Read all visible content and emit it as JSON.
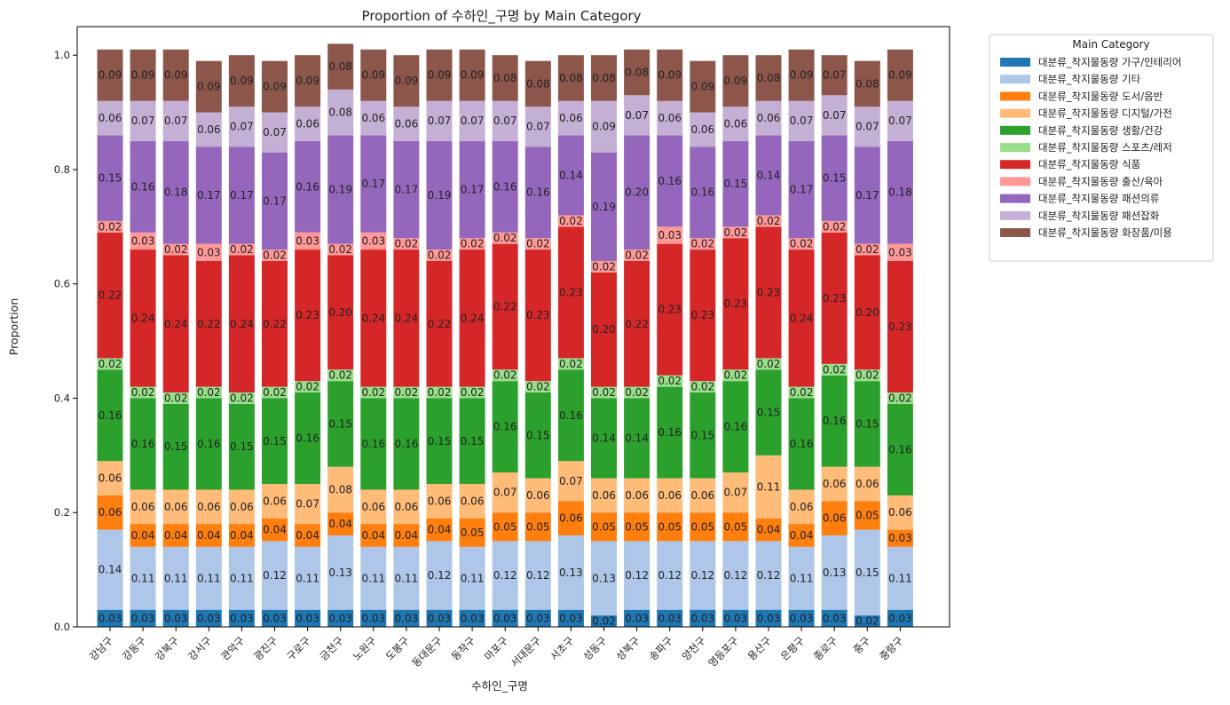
{
  "chart_data": {
    "type": "bar",
    "stacked": true,
    "title": "Proportion of 수하인_구명 by Main Category",
    "xlabel": "수하인_구명",
    "ylabel": "Proportion",
    "ylim": [
      0,
      1.05
    ],
    "yticks": [
      "0.0",
      "0.2",
      "0.4",
      "0.6",
      "0.8",
      "1.0"
    ],
    "grid": false,
    "legend_title": "Main Category",
    "legend_position": "outside-top-right",
    "categories": [
      "강남구",
      "강동구",
      "강북구",
      "강서구",
      "관악구",
      "광진구",
      "구로구",
      "금천구",
      "노원구",
      "도봉구",
      "동대문구",
      "동작구",
      "마포구",
      "서대문구",
      "서초구",
      "성동구",
      "성북구",
      "송파구",
      "양천구",
      "영등포구",
      "용산구",
      "은평구",
      "종로구",
      "중구",
      "중랑구"
    ],
    "series": [
      {
        "name": "대분류_착지물동량 가구/인테리어",
        "color": "#1f77b4",
        "values": [
          0.03,
          0.03,
          0.03,
          0.03,
          0.03,
          0.03,
          0.03,
          0.03,
          0.03,
          0.03,
          0.03,
          0.03,
          0.03,
          0.03,
          0.03,
          0.02,
          0.03,
          0.03,
          0.03,
          0.03,
          0.03,
          0.03,
          0.03,
          0.02,
          0.03
        ]
      },
      {
        "name": "대분류_착지물동량 기타",
        "color": "#aec7e8",
        "values": [
          0.14,
          0.11,
          0.11,
          0.11,
          0.11,
          0.12,
          0.11,
          0.13,
          0.11,
          0.11,
          0.12,
          0.11,
          0.12,
          0.12,
          0.13,
          0.13,
          0.12,
          0.12,
          0.12,
          0.12,
          0.12,
          0.11,
          0.13,
          0.15,
          0.11
        ]
      },
      {
        "name": "대분류_착지물동량 도서/음반",
        "color": "#ff7f0e",
        "values": [
          0.06,
          0.04,
          0.04,
          0.04,
          0.04,
          0.04,
          0.04,
          0.04,
          0.04,
          0.04,
          0.04,
          0.05,
          0.05,
          0.05,
          0.06,
          0.05,
          0.05,
          0.05,
          0.05,
          0.05,
          0.04,
          0.04,
          0.06,
          0.05,
          0.03
        ]
      },
      {
        "name": "대분류_착지물동량 디지털/가전",
        "color": "#ffbb78",
        "values": [
          0.06,
          0.06,
          0.06,
          0.06,
          0.06,
          0.06,
          0.07,
          0.08,
          0.06,
          0.06,
          0.06,
          0.06,
          0.07,
          0.06,
          0.07,
          0.06,
          0.06,
          0.06,
          0.06,
          0.07,
          0.11,
          0.06,
          0.06,
          0.06,
          0.06
        ]
      },
      {
        "name": "대분류_착지물동량 생활/건강",
        "color": "#2ca02c",
        "values": [
          0.16,
          0.16,
          0.15,
          0.16,
          0.15,
          0.15,
          0.16,
          0.15,
          0.16,
          0.16,
          0.15,
          0.15,
          0.16,
          0.15,
          0.16,
          0.14,
          0.14,
          0.16,
          0.15,
          0.16,
          0.15,
          0.16,
          0.16,
          0.15,
          0.16
        ]
      },
      {
        "name": "대분류_착지물동량 스포츠/레저",
        "color": "#98df8a",
        "values": [
          0.02,
          0.02,
          0.02,
          0.02,
          0.02,
          0.02,
          0.02,
          0.02,
          0.02,
          0.02,
          0.02,
          0.02,
          0.02,
          0.02,
          0.02,
          0.02,
          0.02,
          0.02,
          0.02,
          0.02,
          0.02,
          0.02,
          0.02,
          0.02,
          0.02
        ]
      },
      {
        "name": "대분류_착지물동량 식품",
        "color": "#d62728",
        "values": [
          0.22,
          0.24,
          0.24,
          0.22,
          0.24,
          0.22,
          0.23,
          0.2,
          0.24,
          0.24,
          0.22,
          0.24,
          0.22,
          0.23,
          0.23,
          0.2,
          0.22,
          0.23,
          0.23,
          0.23,
          0.23,
          0.24,
          0.23,
          0.2,
          0.23
        ]
      },
      {
        "name": "대분류_착지물동량 출산/육아",
        "color": "#ff9896",
        "values": [
          0.02,
          0.03,
          0.02,
          0.03,
          0.02,
          0.02,
          0.03,
          0.02,
          0.03,
          0.02,
          0.02,
          0.02,
          0.02,
          0.02,
          0.02,
          0.02,
          0.02,
          0.03,
          0.02,
          0.02,
          0.02,
          0.02,
          0.02,
          0.02,
          0.03
        ]
      },
      {
        "name": "대분류_착지물동량 패션의류",
        "color": "#9467bd",
        "values": [
          0.15,
          0.16,
          0.18,
          0.17,
          0.17,
          0.17,
          0.16,
          0.19,
          0.17,
          0.17,
          0.19,
          0.17,
          0.16,
          0.16,
          0.14,
          0.19,
          0.2,
          0.16,
          0.16,
          0.15,
          0.14,
          0.17,
          0.15,
          0.17,
          0.18
        ]
      },
      {
        "name": "대분류_착지물동량 패션잡화",
        "color": "#c5b0d5",
        "values": [
          0.06,
          0.07,
          0.07,
          0.06,
          0.07,
          0.07,
          0.06,
          0.08,
          0.06,
          0.06,
          0.07,
          0.07,
          0.07,
          0.07,
          0.06,
          0.09,
          0.07,
          0.06,
          0.06,
          0.06,
          0.06,
          0.07,
          0.07,
          0.07,
          0.07
        ]
      },
      {
        "name": "대분류_착지물동량 화장품/미용",
        "color": "#8c564b",
        "values": [
          0.09,
          0.09,
          0.09,
          0.09,
          0.09,
          0.09,
          0.09,
          0.08,
          0.09,
          0.09,
          0.09,
          0.09,
          0.08,
          0.08,
          0.08,
          0.08,
          0.08,
          0.09,
          0.09,
          0.09,
          0.08,
          0.09,
          0.07,
          0.08,
          0.09
        ]
      }
    ]
  }
}
